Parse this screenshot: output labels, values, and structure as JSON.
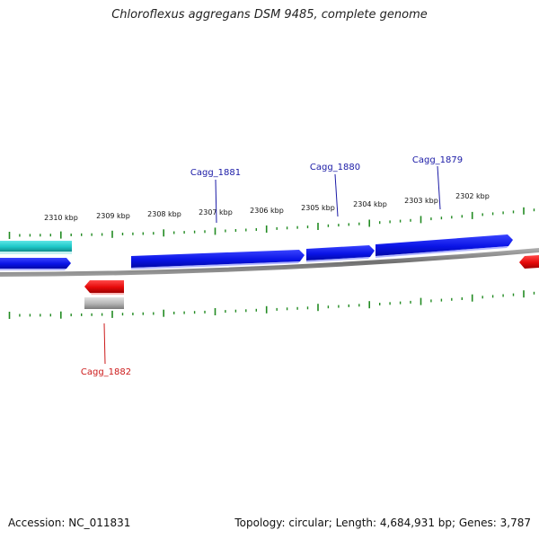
{
  "title": "Chloroflexus aggregans DSM 9485, complete genome",
  "footer": {
    "accession_text": "Accession: NC_011831",
    "summary_text": "Topology: circular; Length: 4,684,931 bp; Genes: 3,787"
  },
  "colors": {
    "forward_gene": "#0a14e6",
    "reverse_gene": "#e60a0a",
    "rna_feature": "#1ec8c8",
    "gray_feature": "#b4b4b4",
    "backbone": "#808080",
    "tick": "#228b22",
    "forward_label": "#1a1aa6",
    "reverse_label": "#cc1a1a"
  },
  "axis_labels": [
    "2310 kbp",
    "2309 kbp",
    "2308 kbp",
    "2307 kbp",
    "2306 kbp",
    "2305 kbp",
    "2304 kbp",
    "2303 kbp",
    "2302 kbp"
  ],
  "gene_labels": [
    {
      "id": "Cagg_1881",
      "strand": "forward"
    },
    {
      "id": "Cagg_1880",
      "strand": "forward"
    },
    {
      "id": "Cagg_1879",
      "strand": "forward"
    },
    {
      "id": "Cagg_1882",
      "strand": "reverse"
    }
  ]
}
